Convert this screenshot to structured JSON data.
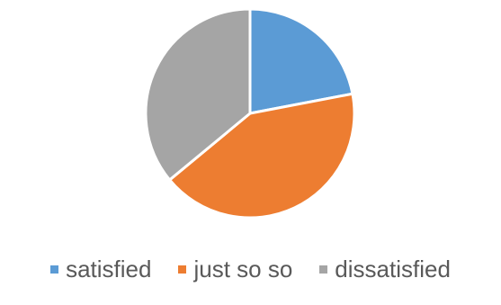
{
  "chart_data": {
    "type": "pie",
    "categories": [
      "satisfied",
      "just so so",
      "dissatisfied"
    ],
    "values": [
      22,
      42,
      36
    ],
    "colors": [
      "#5B9BD5",
      "#ED7D31",
      "#A5A5A5"
    ],
    "start_angle_deg": 0,
    "direction": "clockwise",
    "legend_position": "bottom",
    "title": ""
  }
}
